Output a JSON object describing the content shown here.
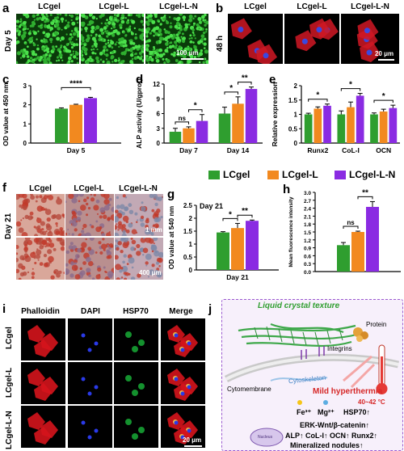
{
  "panels": {
    "a": {
      "label": "a",
      "row_label": "Day 5",
      "titles": [
        "LCgel",
        "LCgel-L",
        "LCgel-L-N"
      ],
      "scale": "100 μm"
    },
    "b": {
      "label": "b",
      "row_label": "48 h",
      "titles": [
        "LCgel",
        "LCgel-L",
        "LCgel-L-N"
      ],
      "scale": "20 μm"
    },
    "c": {
      "label": "c"
    },
    "d": {
      "label": "d"
    },
    "e": {
      "label": "e"
    },
    "f": {
      "label": "f",
      "row_label": "Day 21",
      "titles": [
        "LCgel",
        "LCgel-L",
        "LCgel-L-N"
      ],
      "scale_top": "1 mm",
      "scale_bottom": "400 μm"
    },
    "g": {
      "label": "g"
    },
    "h": {
      "label": "h"
    },
    "i": {
      "label": "i",
      "stains": [
        "Phalloidin",
        "DAPI",
        "HSP70",
        "Merge"
      ],
      "stain_colors": [
        "#e8141e",
        "#1b2bd6",
        "#1aa83a",
        "#000000"
      ],
      "rows": [
        "LCgel",
        "LCgel-L",
        "LCgel-L-N"
      ],
      "scale": "20 μm"
    },
    "j": {
      "label": "j",
      "texts": {
        "lc": "Liquid crystal texture",
        "protein": "Protein",
        "integrins": "Integrins",
        "cytomembrane": "Cytomembrane",
        "cytoskeleton": "Cytoskeleton",
        "hyper": "Mild hyperthermia",
        "temp": "40~42 °C",
        "fe": "Fe³⁺",
        "mg": "Mg²⁺",
        "hsp": "HSP70↑",
        "erk": "ERK-Wnt/β-catenin↑",
        "markers": "ALP↑ CoL-I↑ OCN↑ Runx2↑",
        "nodules": "Mineralized nodules↑",
        "nucleus": "Nucleus"
      }
    }
  },
  "legend": {
    "items": [
      "LCgel",
      "LCgel-L",
      "LCgel-L-N"
    ]
  },
  "colors": {
    "green": "#2f9e2f",
    "orange": "#f2891f",
    "purple": "#8a2be2"
  },
  "chart_data": [
    {
      "id": "c",
      "type": "bar",
      "categories": [
        "Day 5"
      ],
      "series": [
        {
          "name": "LCgel",
          "values": [
            1.8
          ],
          "errors": [
            0.04
          ]
        },
        {
          "name": "LCgel-L",
          "values": [
            2.0
          ],
          "errors": [
            0.03
          ]
        },
        {
          "name": "LCgel-L-N",
          "values": [
            2.35
          ],
          "errors": [
            0.04
          ]
        }
      ],
      "ylabel": "OD value at 450 nm",
      "ylim": [
        0,
        3
      ],
      "yticks": [
        0,
        1,
        2,
        3
      ],
      "significance": [
        {
          "pair": [
            0,
            2
          ],
          "label": "****"
        }
      ]
    },
    {
      "id": "d",
      "type": "bar",
      "categories": [
        "Day 7",
        "Day 14"
      ],
      "series": [
        {
          "name": "LCgel",
          "values": [
            2.3,
            6.0
          ],
          "errors": [
            0.7,
            1.3
          ]
        },
        {
          "name": "LCgel-L",
          "values": [
            3.0,
            8.0
          ],
          "errors": [
            0.3,
            1.4
          ]
        },
        {
          "name": "LCgel-L-N",
          "values": [
            4.5,
            11.0
          ],
          "errors": [
            1.3,
            0.4
          ]
        }
      ],
      "ylabel": "ALP activity (U/gprot)",
      "ylim": [
        0,
        12
      ],
      "yticks": [
        0,
        3,
        6,
        9,
        12
      ],
      "significance": [
        {
          "group": 0,
          "pair": [
            0,
            1
          ],
          "label": "ns"
        },
        {
          "group": 0,
          "pair": [
            1,
            2
          ],
          "label": "*"
        },
        {
          "group": 1,
          "pair": [
            0,
            1
          ],
          "label": "*"
        },
        {
          "group": 1,
          "pair": [
            1,
            2
          ],
          "label": "**"
        }
      ]
    },
    {
      "id": "e",
      "type": "bar",
      "categories": [
        "Runx2",
        "CoL-I",
        "OCN"
      ],
      "series": [
        {
          "name": "LCgel",
          "values": [
            1.0,
            1.0,
            1.0
          ],
          "errors": [
            0.04,
            0.12,
            0.05
          ]
        },
        {
          "name": "LCgel-L",
          "values": [
            1.2,
            1.25,
            1.1
          ],
          "errors": [
            0.06,
            0.18,
            0.08
          ]
        },
        {
          "name": "LCgel-L-N",
          "values": [
            1.3,
            1.65,
            1.22
          ],
          "errors": [
            0.06,
            0.08,
            0.1
          ]
        }
      ],
      "ylabel": "Relative expression",
      "ylim": [
        0,
        2
      ],
      "yticks": [
        0,
        0.5,
        1,
        1.5,
        2
      ],
      "significance": [
        {
          "group": 0,
          "pair": [
            0,
            2
          ],
          "label": "*"
        },
        {
          "group": 1,
          "pair": [
            0,
            2
          ],
          "label": "*"
        },
        {
          "group": 2,
          "pair": [
            0,
            2
          ],
          "label": "*"
        }
      ]
    },
    {
      "id": "g",
      "type": "bar",
      "categories": [
        "Day 21"
      ],
      "series": [
        {
          "name": "LCgel",
          "values": [
            1.45
          ],
          "errors": [
            0.03
          ]
        },
        {
          "name": "LCgel-L",
          "values": [
            1.62
          ],
          "errors": [
            0.18
          ]
        },
        {
          "name": "LCgel-L-N",
          "values": [
            1.9
          ],
          "errors": [
            0.03
          ]
        }
      ],
      "ylabel": "OD value at 540 nm",
      "ylim": [
        0,
        2.5
      ],
      "yticks": [
        0,
        0.5,
        1,
        1.5,
        2,
        2.5
      ],
      "annotation": "Day 21",
      "significance": [
        {
          "pair": [
            0,
            1
          ],
          "label": "*"
        },
        {
          "pair": [
            1,
            2
          ],
          "label": "**"
        }
      ]
    },
    {
      "id": "h",
      "type": "bar",
      "categories": [
        ""
      ],
      "series": [
        {
          "name": "LCgel",
          "values": [
            1.0
          ],
          "errors": [
            0.1
          ]
        },
        {
          "name": "LCgel-L",
          "values": [
            1.5
          ],
          "errors": [
            0.03
          ]
        },
        {
          "name": "LCgel-L-N",
          "values": [
            2.45
          ],
          "errors": [
            0.2
          ]
        }
      ],
      "ylabel": "Mean fluorescence intensity",
      "ylim": [
        0,
        3
      ],
      "yticks": [
        0,
        0.3,
        0.6,
        0.9,
        1.2,
        1.5,
        1.8,
        2.1,
        2.4,
        2.7,
        3.0
      ],
      "significance": [
        {
          "pair": [
            0,
            1
          ],
          "label": "ns"
        },
        {
          "pair": [
            1,
            2
          ],
          "label": "**"
        }
      ]
    }
  ]
}
